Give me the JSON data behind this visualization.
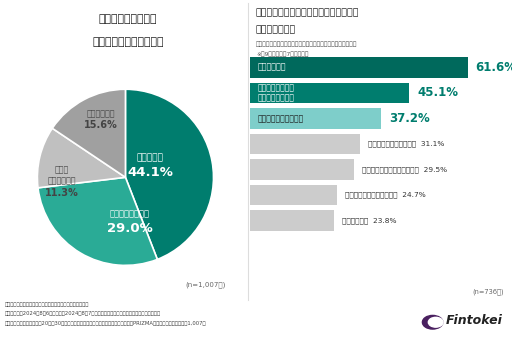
{
  "pie_title_line1": "現在、お金のことで",
  "pie_title_line2": "不安を感じていますか？",
  "pie_values": [
    44.1,
    29.0,
    11.3,
    15.6
  ],
  "pie_colors": [
    "#007d6e",
    "#2aab96",
    "#c0c0c0",
    "#a0a0a0"
  ],
  "bar_title_line1": "不安を感じている理由を教えてください",
  "bar_title_line2": "（複数選択可）",
  "bar_subtitle_line1": "ー「感じている」「たまに感じている」と回答した方が回答ー",
  "bar_subtitle_line2": "※全9項目中上位7項目を抜粋",
  "bar_labels": [
    "収入が少ない",
    "物価の高騰により\n支出が増えている",
    "貯蓄など資産が少ない",
    "収入が上がりそうにない",
    "年金をもらえるかわからない",
    "老後の資金を用意できない",
    "収入が不安定"
  ],
  "bar_values": [
    61.6,
    45.1,
    37.2,
    31.1,
    29.5,
    24.7,
    23.8
  ],
  "bar_colors": [
    "#00695c",
    "#007d6e",
    "#7ececa",
    "#cccccc",
    "#cccccc",
    "#cccccc",
    "#cccccc"
  ],
  "n_pie": "(n=1,007人)",
  "n_bar": "(n=736人)",
  "footer_line1": "〈調査概要：「お金・資産形成の悩み」に関する意識調査〉",
  "footer_line2": "・調査期間：2024年8月6日（火）～2024年8月7日（水）　　　・調査方法：インターネット調査",
  "footer_line3": "・調査対象：調査回答時に20代～30代の男女と回答したモニター　・モニター提供元：PRIZMAリサーチ　・調査人数：1,007人",
  "logo_text": "Fintokei",
  "bg_color": "#ffffff"
}
